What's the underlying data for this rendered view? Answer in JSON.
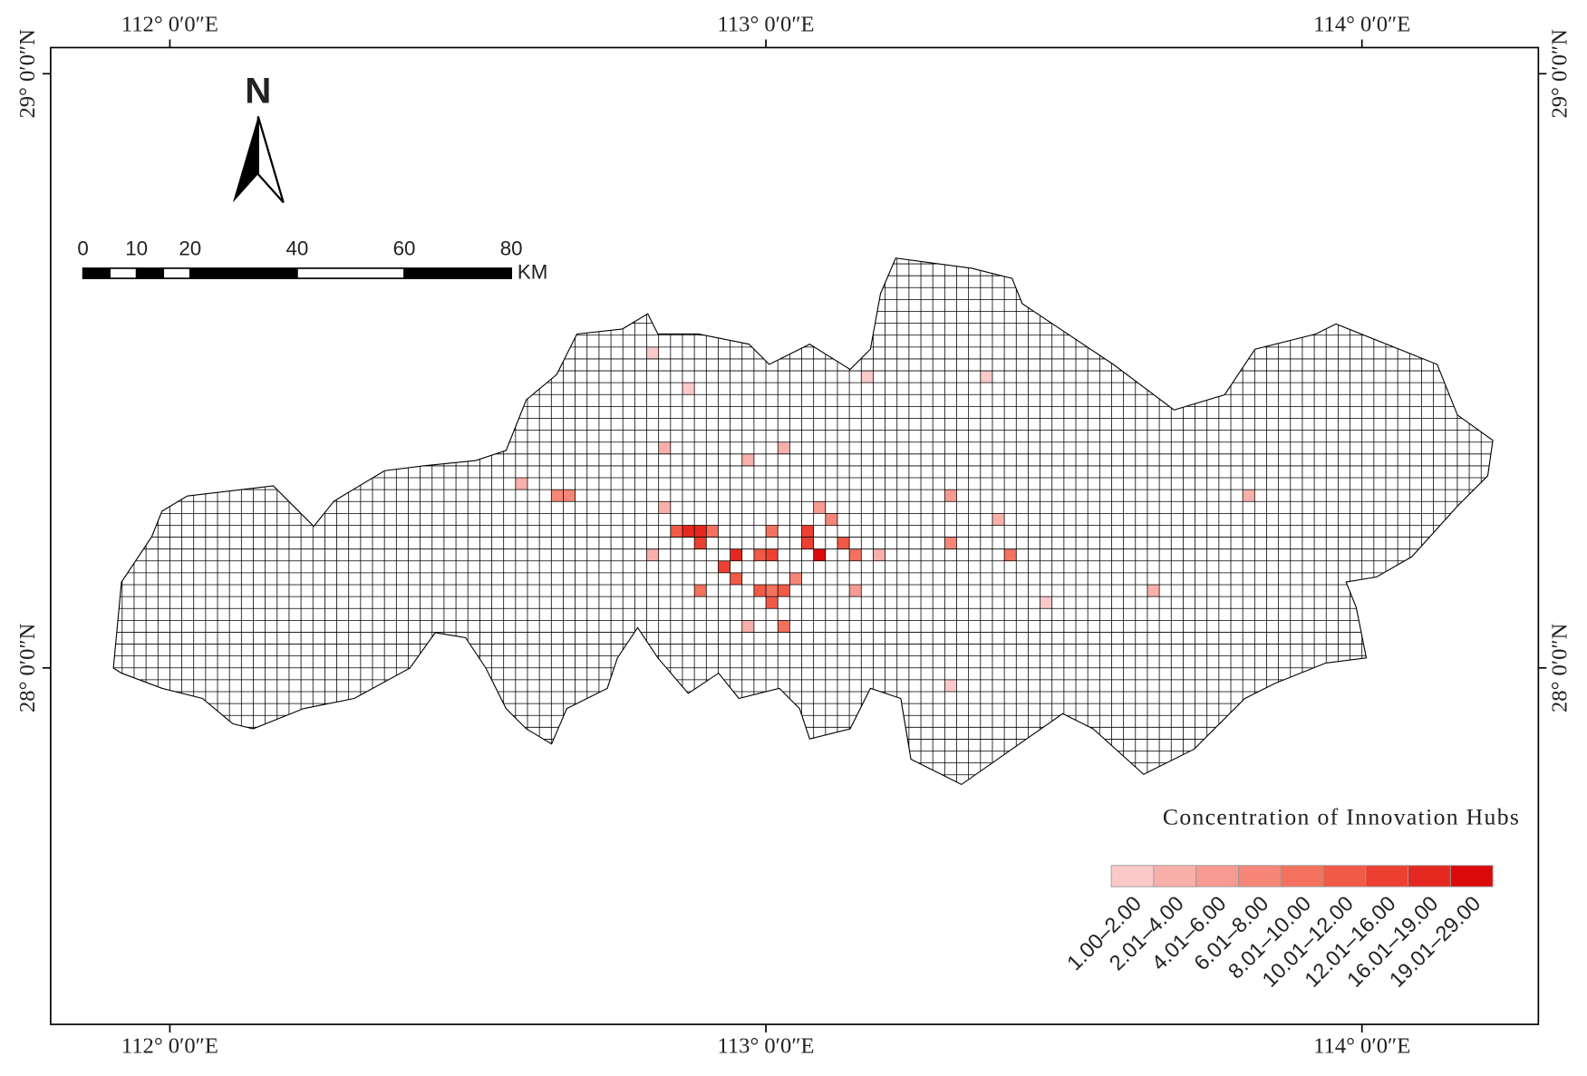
{
  "map": {
    "x_ticks": [
      {
        "value": 112,
        "label": "112° 0′0″E"
      },
      {
        "value": 113,
        "label": "113° 0′0″E"
      },
      {
        "value": 114,
        "label": "114° 0′0″E"
      }
    ],
    "y_ticks": [
      {
        "value": 29,
        "label": "29° 0′0″N"
      },
      {
        "value": 28,
        "label": "28° 0′0″N"
      }
    ],
    "xlim": [
      111.8,
      114.296
    ],
    "ylim": [
      27.4,
      29.044
    ],
    "north_label": "N",
    "scale_bar": {
      "ticks": [
        0,
        10,
        20,
        40,
        60,
        80
      ],
      "unit": "KM"
    },
    "legend": {
      "title": "Concentration of Innovation Hubs",
      "classes": [
        {
          "label": "1.00–2.00",
          "color": "#fcc9c9"
        },
        {
          "label": "2.01–4.00",
          "color": "#f9b0ab"
        },
        {
          "label": "4.01–6.00",
          "color": "#f79a92"
        },
        {
          "label": "6.01–8.00",
          "color": "#f58678"
        },
        {
          "label": "8.01–10.00",
          "color": "#f3725e"
        },
        {
          "label": "10.01–12.00",
          "color": "#f05a47"
        },
        {
          "label": "12.01–16.00",
          "color": "#ec4132"
        },
        {
          "label": "16.01–19.00",
          "color": "#e5281f"
        },
        {
          "label": "19.01–29.00",
          "color": "#db0b0b"
        }
      ]
    },
    "cells": [
      {
        "lon": 112.89,
        "lat": 28.23,
        "class": 7
      },
      {
        "lon": 112.87,
        "lat": 28.23,
        "class": 7
      },
      {
        "lon": 112.85,
        "lat": 28.23,
        "class": 5
      },
      {
        "lon": 112.91,
        "lat": 28.23,
        "class": 4
      },
      {
        "lon": 112.89,
        "lat": 28.21,
        "class": 6
      },
      {
        "lon": 113.09,
        "lat": 28.19,
        "class": 8
      },
      {
        "lon": 112.95,
        "lat": 28.19,
        "class": 7
      },
      {
        "lon": 112.95,
        "lat": 28.15,
        "class": 5
      },
      {
        "lon": 113.01,
        "lat": 28.19,
        "class": 6
      },
      {
        "lon": 112.99,
        "lat": 28.19,
        "class": 5
      },
      {
        "lon": 113.07,
        "lat": 28.23,
        "class": 6
      },
      {
        "lon": 113.07,
        "lat": 28.21,
        "class": 6
      },
      {
        "lon": 113.13,
        "lat": 28.21,
        "class": 5
      },
      {
        "lon": 113.15,
        "lat": 28.19,
        "class": 4
      },
      {
        "lon": 113.01,
        "lat": 28.23,
        "class": 4
      },
      {
        "lon": 113.03,
        "lat": 28.13,
        "class": 5
      },
      {
        "lon": 113.01,
        "lat": 28.13,
        "class": 4
      },
      {
        "lon": 112.99,
        "lat": 28.13,
        "class": 5
      },
      {
        "lon": 112.89,
        "lat": 28.13,
        "class": 4
      },
      {
        "lon": 113.01,
        "lat": 28.11,
        "class": 5
      },
      {
        "lon": 113.03,
        "lat": 28.07,
        "class": 4
      },
      {
        "lon": 112.67,
        "lat": 28.29,
        "class": 3
      },
      {
        "lon": 112.65,
        "lat": 28.29,
        "class": 3
      },
      {
        "lon": 112.83,
        "lat": 28.37,
        "class": 1
      },
      {
        "lon": 112.81,
        "lat": 28.53,
        "class": 0
      },
      {
        "lon": 112.87,
        "lat": 28.47,
        "class": 0
      },
      {
        "lon": 113.03,
        "lat": 28.37,
        "class": 1
      },
      {
        "lon": 112.97,
        "lat": 28.35,
        "class": 1
      },
      {
        "lon": 113.81,
        "lat": 28.29,
        "class": 1
      },
      {
        "lon": 113.65,
        "lat": 28.13,
        "class": 1
      },
      {
        "lon": 113.47,
        "lat": 28.11,
        "class": 0
      },
      {
        "lon": 113.31,
        "lat": 27.97,
        "class": 0
      },
      {
        "lon": 113.37,
        "lat": 28.49,
        "class": 0
      },
      {
        "lon": 113.17,
        "lat": 28.49,
        "class": 0
      },
      {
        "lon": 113.41,
        "lat": 28.19,
        "class": 4
      },
      {
        "lon": 113.31,
        "lat": 28.21,
        "class": 3
      },
      {
        "lon": 113.31,
        "lat": 28.29,
        "class": 2
      },
      {
        "lon": 113.11,
        "lat": 28.25,
        "class": 3
      },
      {
        "lon": 113.09,
        "lat": 28.27,
        "class": 2
      },
      {
        "lon": 112.93,
        "lat": 28.17,
        "class": 6
      },
      {
        "lon": 113.05,
        "lat": 28.15,
        "class": 3
      },
      {
        "lon": 113.19,
        "lat": 28.19,
        "class": 1
      },
      {
        "lon": 112.59,
        "lat": 28.31,
        "class": 1
      },
      {
        "lon": 112.83,
        "lat": 28.27,
        "class": 1
      },
      {
        "lon": 112.81,
        "lat": 28.19,
        "class": 1
      },
      {
        "lon": 113.39,
        "lat": 28.25,
        "class": 1
      },
      {
        "lon": 112.97,
        "lat": 28.07,
        "class": 1
      },
      {
        "lon": 113.15,
        "lat": 28.13,
        "class": 2
      }
    ]
  }
}
